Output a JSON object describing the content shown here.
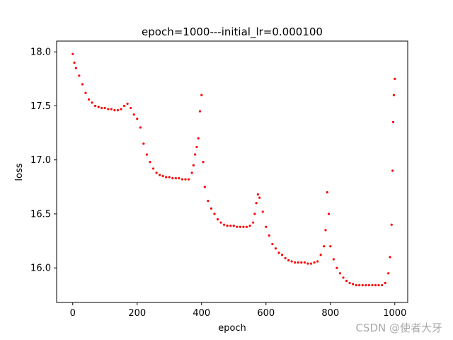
{
  "chart_data": {
    "type": "scatter",
    "title": "epoch=1000---initial_lr=0.000100",
    "xlabel": "epoch",
    "ylabel": "loss",
    "xlim": [
      -50,
      1040
    ],
    "ylim": [
      15.68,
      18.1
    ],
    "x_ticks": [
      0,
      200,
      400,
      600,
      800,
      1000
    ],
    "y_ticks": [
      16.0,
      16.5,
      17.0,
      17.5,
      18.0
    ],
    "x_tick_labels": [
      "0",
      "200",
      "400",
      "600",
      "800",
      "1000"
    ],
    "y_tick_labels": [
      "16.0",
      "16.5",
      "17.0",
      "17.5",
      "18.0"
    ],
    "grid": false,
    "marker_color": "#ff0000",
    "series": [
      {
        "x": [
          0,
          5,
          10,
          20,
          30,
          40,
          50,
          60,
          70,
          80,
          90,
          100,
          110,
          120,
          130,
          140,
          150,
          160,
          170,
          180,
          190,
          200,
          210,
          220,
          230,
          240,
          250,
          260,
          270,
          280,
          290,
          300,
          310,
          320,
          330,
          340,
          350,
          360,
          370,
          375,
          380,
          385,
          390,
          395,
          400,
          405,
          410,
          420,
          430,
          440,
          450,
          460,
          470,
          480,
          490,
          500,
          510,
          520,
          530,
          540,
          550,
          560,
          565,
          570,
          575,
          580,
          590,
          600,
          610,
          620,
          630,
          640,
          650,
          660,
          670,
          680,
          690,
          700,
          710,
          720,
          730,
          740,
          750,
          760,
          770,
          780,
          785,
          790,
          795,
          800,
          810,
          820,
          830,
          840,
          850,
          860,
          870,
          880,
          890,
          900,
          910,
          920,
          930,
          940,
          950,
          960,
          970,
          980,
          985,
          990,
          993,
          995,
          997,
          1000
        ],
        "y": [
          17.98,
          17.9,
          17.85,
          17.78,
          17.7,
          17.62,
          17.56,
          17.53,
          17.5,
          17.49,
          17.48,
          17.48,
          17.47,
          17.47,
          17.46,
          17.46,
          17.47,
          17.5,
          17.52,
          17.48,
          17.42,
          17.38,
          17.3,
          17.15,
          17.05,
          16.98,
          16.92,
          16.88,
          16.86,
          16.85,
          16.84,
          16.84,
          16.83,
          16.83,
          16.83,
          16.82,
          16.82,
          16.82,
          16.88,
          16.95,
          17.05,
          17.12,
          17.2,
          17.45,
          17.6,
          16.98,
          16.75,
          16.62,
          16.55,
          16.5,
          16.45,
          16.42,
          16.4,
          16.39,
          16.39,
          16.39,
          16.38,
          16.38,
          16.38,
          16.38,
          16.39,
          16.42,
          16.5,
          16.6,
          16.68,
          16.65,
          16.52,
          16.38,
          16.3,
          16.22,
          16.18,
          16.14,
          16.12,
          16.09,
          16.07,
          16.06,
          16.05,
          16.05,
          16.05,
          16.05,
          16.04,
          16.04,
          16.05,
          16.06,
          16.12,
          16.2,
          16.35,
          16.7,
          16.5,
          16.2,
          16.08,
          16.0,
          15.95,
          15.91,
          15.88,
          15.86,
          15.85,
          15.84,
          15.84,
          15.84,
          15.84,
          15.84,
          15.84,
          15.84,
          15.84,
          15.84,
          15.86,
          15.95,
          16.1,
          16.4,
          16.9,
          17.35,
          17.6,
          17.75
        ]
      }
    ]
  },
  "watermark": "CSDN @使者大牙"
}
